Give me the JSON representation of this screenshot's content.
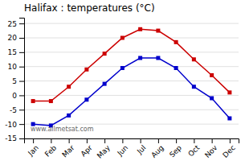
{
  "chart_data": {
    "type": "line",
    "title": "Halifax : temperatures (°C)",
    "categories": [
      "Jan",
      "Feb",
      "Mar",
      "Apr",
      "May",
      "Jun",
      "Jul",
      "Aug",
      "Sep",
      "Oct",
      "Nov",
      "Dec"
    ],
    "series": [
      {
        "color": "#cc0000",
        "marker": "square",
        "values": [
          -2,
          -2,
          3,
          9,
          14.5,
          20,
          23,
          22.5,
          18.5,
          12.5,
          7,
          1
        ]
      },
      {
        "color": "#0000cc",
        "marker": "square",
        "values": [
          -10,
          -10.5,
          -7,
          -1.5,
          4,
          9.5,
          13,
          13,
          9.5,
          3,
          -1,
          -8
        ]
      }
    ],
    "ylim": [
      -15,
      27
    ],
    "yticks": [
      -15,
      -10,
      -5,
      0,
      5,
      10,
      15,
      20,
      25
    ],
    "grid": true,
    "annotation": "www.allmetsat.com"
  }
}
